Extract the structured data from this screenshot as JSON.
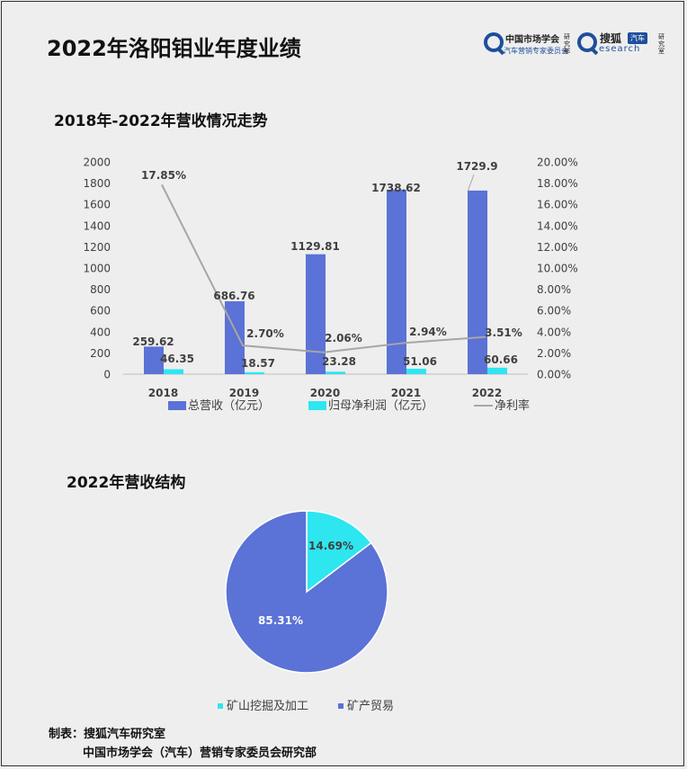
{
  "header": {
    "title": "2022年洛阳钼业年度业绩",
    "logo_cma": "中国市场学会",
    "logo_cma_sub": "汽车营销专家委员会",
    "logo_cma_vert": "研究部",
    "logo_sohu": "搜狐",
    "logo_sohu_badge": "汽车",
    "logo_research": "esearch",
    "logo_sohu_vert": "研究室",
    "brand_color": "#1e4f9c"
  },
  "chart1": {
    "title": "2018年-2022年营收情况走势"
  },
  "chart2": {
    "title": "2022年营收结构"
  },
  "footer": {
    "line1": "制表：搜狐汽车研究室",
    "line2": "中国市场学会（汽车）营销专家委员会研究部"
  },
  "chart_data": [
    {
      "type": "bar",
      "title": "2018年-2022年营收情况走势",
      "categories": [
        "2018",
        "2019",
        "2020",
        "2021",
        "2022"
      ],
      "ylim": [
        0,
        2000
      ],
      "yticks": [
        "0",
        "200",
        "400",
        "600",
        "800",
        "1000",
        "1200",
        "1400",
        "1600",
        "1800",
        "2000"
      ],
      "y2lim": [
        0,
        20
      ],
      "y2ticks": [
        "0.00%",
        "2.00%",
        "4.00%",
        "6.00%",
        "8.00%",
        "10.00%",
        "12.00%",
        "14.00%",
        "16.00%",
        "18.00%",
        "20.00%"
      ],
      "legend_position": "bottom",
      "grid": false,
      "series": [
        {
          "name": "总营收（亿元）",
          "kind": "bar",
          "axis": "left",
          "color": "#5b72d6",
          "values": [
            259.62,
            686.76,
            1129.81,
            1738.62,
            1729.9
          ],
          "labels": [
            "259.62",
            "686.76",
            "1129.81",
            "1738.62",
            "1729.9"
          ]
        },
        {
          "name": "归母净利润（亿元）",
          "kind": "bar",
          "axis": "left",
          "color": "#2ee6f0",
          "values": [
            46.35,
            18.57,
            23.28,
            51.06,
            60.66
          ],
          "labels": [
            "46.35",
            "18.57",
            "23.28",
            "51.06",
            "60.66"
          ]
        },
        {
          "name": "净利率",
          "kind": "line",
          "axis": "right",
          "color": "#a6a6a6",
          "values": [
            17.85,
            2.7,
            2.06,
            2.94,
            3.51
          ],
          "labels": [
            "17.85%",
            "2.70%",
            "2.06%",
            "2.94%",
            "3.51%"
          ]
        }
      ]
    },
    {
      "type": "pie",
      "title": "2022年营收结构",
      "legend_position": "bottom",
      "slices": [
        {
          "name": "矿山挖掘及加工",
          "value": 14.69,
          "label": "14.69%",
          "color": "#2ee6f0"
        },
        {
          "name": "矿产贸易",
          "value": 85.31,
          "label": "85.31%",
          "color": "#5b72d6"
        }
      ]
    }
  ]
}
